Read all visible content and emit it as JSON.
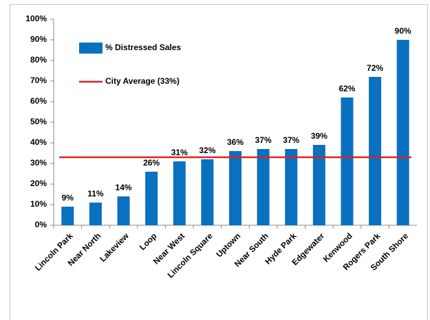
{
  "chart_data": {
    "type": "bar",
    "categories": [
      "Lincoln Park",
      "Near North",
      "Lakeview",
      "Loop",
      "Near West",
      "Lincoln Square",
      "Uptown",
      "Near South",
      "Hyde Park",
      "Edgewater",
      "Kenwood",
      "Rogers Park",
      "South Shore"
    ],
    "series": [
      {
        "name": "% Distressed Sales",
        "color": "#0a70c0",
        "values": [
          9,
          11,
          14,
          26,
          31,
          32,
          36,
          37,
          37,
          39,
          62,
          72,
          90
        ],
        "value_labels": [
          "9%",
          "11%",
          "14%",
          "26%",
          "31%",
          "32%",
          "36%",
          "37%",
          "37%",
          "39%",
          "62%",
          "72%",
          "90%"
        ]
      }
    ],
    "reference_line": {
      "name": "City Average (33%)",
      "value": 33,
      "color": "#e02020"
    },
    "ylim": [
      0,
      100
    ],
    "yticks": [
      {
        "value": 0,
        "label": "0%"
      },
      {
        "value": 10,
        "label": "10%"
      },
      {
        "value": 20,
        "label": "20%"
      },
      {
        "value": 30,
        "label": "30%"
      },
      {
        "value": 40,
        "label": "40%"
      },
      {
        "value": 50,
        "label": "50%"
      },
      {
        "value": 60,
        "label": "60%"
      },
      {
        "value": 70,
        "label": "70%"
      },
      {
        "value": 80,
        "label": "80%"
      },
      {
        "value": 90,
        "label": "90%"
      },
      {
        "value": 100,
        "label": "100%"
      }
    ],
    "grid": false,
    "legend": "top-left"
  }
}
